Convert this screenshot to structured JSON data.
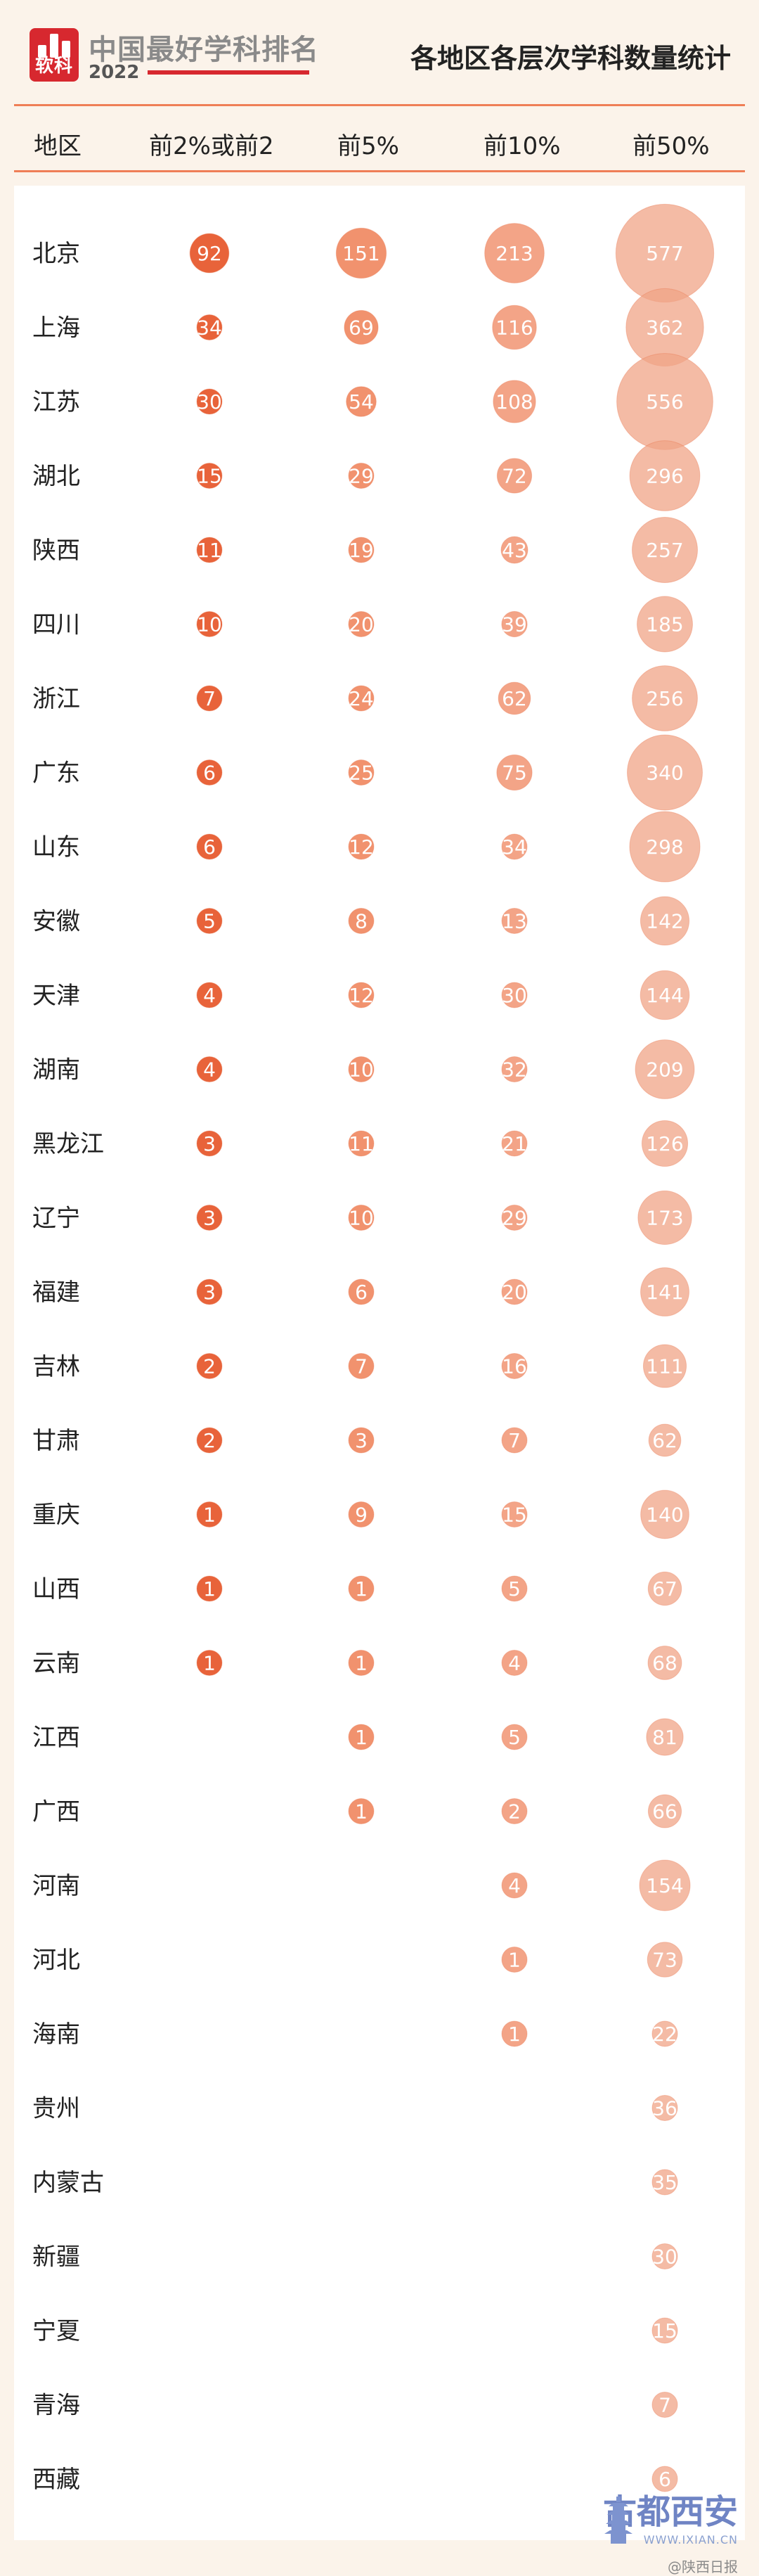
{
  "header": {
    "logo_text": "软科",
    "brand": "中国最好学科排名",
    "year": "2022",
    "title": "各地区各层次学科数量统计",
    "columns": [
      "地区",
      "前2%或前2",
      "前5%",
      "前10%",
      "前50%"
    ]
  },
  "colors": {
    "accent": "#ef7e56",
    "bubble_top2": "#e8633a",
    "bubble_top5": "#f08c66",
    "bubble_top10": "#f29a7a",
    "bubble_top50": "#f0a487",
    "brand_red": "#d7282f"
  },
  "watermark": {
    "main": "古都西安",
    "url": "WWW.IXIAN.CN",
    "weibo": "@陕西日报"
  },
  "chart_data": {
    "type": "bubble",
    "title": "各地区各层次学科数量统计",
    "categories": [
      "北京",
      "上海",
      "江苏",
      "湖北",
      "陕西",
      "四川",
      "浙江",
      "广东",
      "山东",
      "安徽",
      "天津",
      "湖南",
      "黑龙江",
      "辽宁",
      "福建",
      "吉林",
      "甘肃",
      "重庆",
      "山西",
      "云南",
      "江西",
      "广西",
      "河南",
      "河北",
      "海南",
      "贵州",
      "内蒙古",
      "新疆",
      "宁夏",
      "青海",
      "西藏"
    ],
    "series": [
      {
        "name": "前2%或前2",
        "values": [
          92,
          34,
          30,
          15,
          11,
          10,
          7,
          6,
          6,
          5,
          4,
          4,
          3,
          3,
          3,
          2,
          2,
          1,
          1,
          1,
          null,
          null,
          null,
          null,
          null,
          null,
          null,
          null,
          null,
          null,
          null
        ]
      },
      {
        "name": "前5%",
        "values": [
          151,
          69,
          54,
          29,
          19,
          20,
          24,
          25,
          12,
          8,
          12,
          10,
          11,
          10,
          6,
          7,
          3,
          9,
          1,
          1,
          1,
          1,
          null,
          null,
          null,
          null,
          null,
          null,
          null,
          null,
          null
        ]
      },
      {
        "name": "前10%",
        "values": [
          213,
          116,
          108,
          72,
          43,
          39,
          62,
          75,
          34,
          13,
          30,
          32,
          21,
          29,
          20,
          16,
          7,
          15,
          5,
          4,
          5,
          2,
          4,
          1,
          1,
          null,
          null,
          null,
          null,
          null,
          null
        ]
      },
      {
        "name": "前50%",
        "values": [
          577,
          362,
          556,
          296,
          257,
          185,
          256,
          340,
          298,
          142,
          144,
          209,
          126,
          173,
          141,
          111,
          62,
          140,
          67,
          68,
          81,
          66,
          154,
          73,
          22,
          36,
          35,
          30,
          15,
          7,
          6
        ]
      }
    ]
  }
}
